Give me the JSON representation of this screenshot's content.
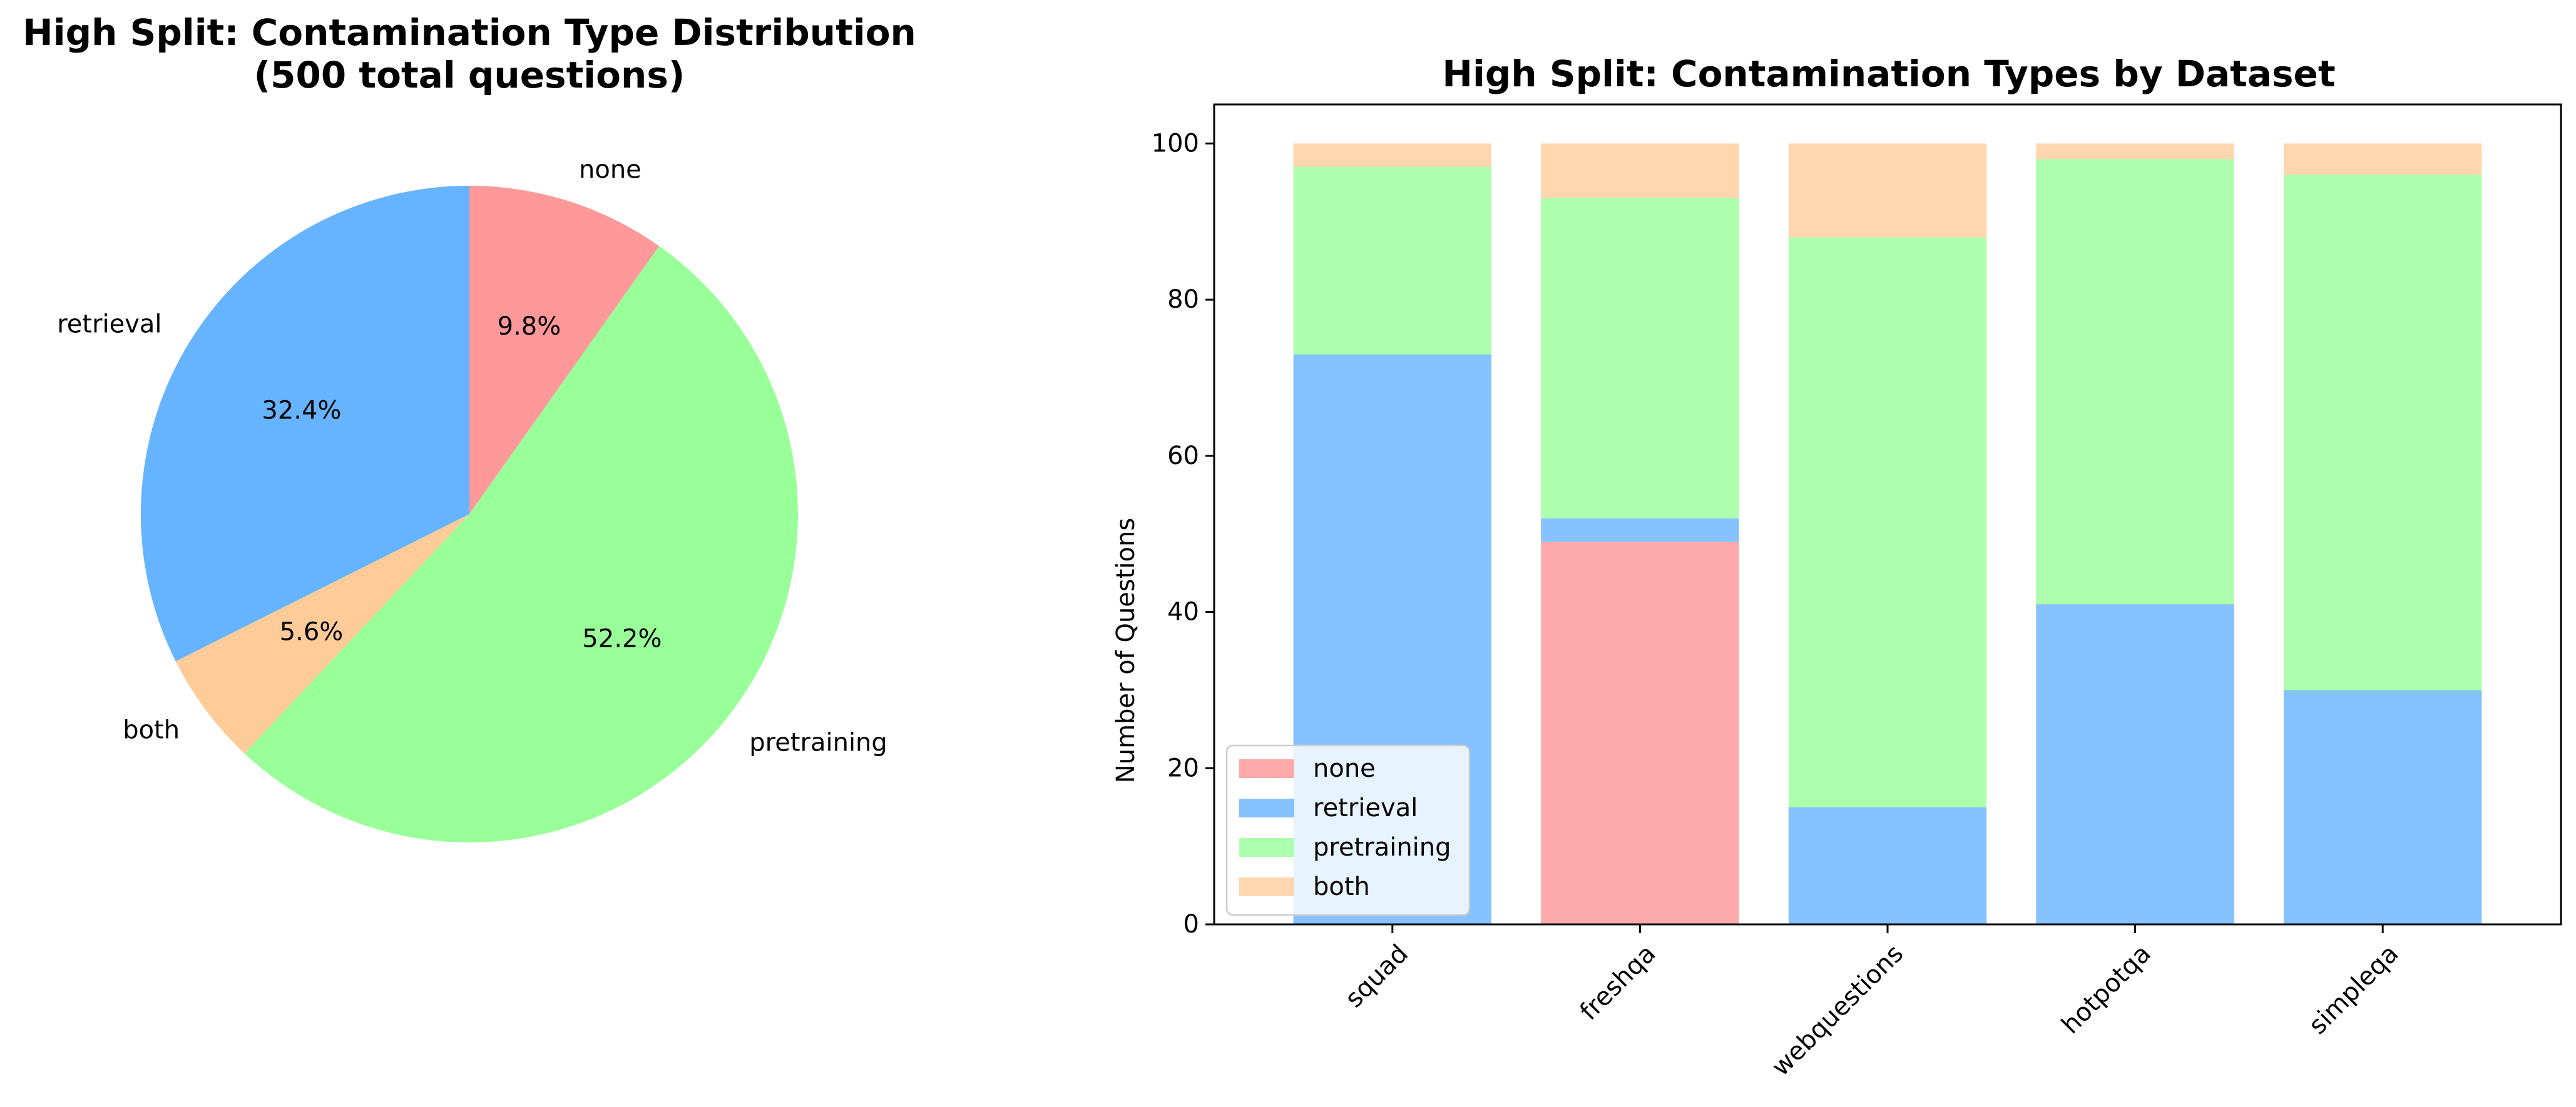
{
  "chart_data": [
    {
      "type": "pie",
      "title": "High Split: Contamination Type Distribution",
      "subtitle": "(500 total questions)",
      "slices": [
        {
          "label": "none",
          "value": 9.8,
          "display": "9.8%",
          "color": "#ff9999"
        },
        {
          "label": "pretraining",
          "value": 52.2,
          "display": "52.2%",
          "color": "#99ff99"
        },
        {
          "label": "both",
          "value": 5.6,
          "display": "5.6%",
          "color": "#ffcc99"
        },
        {
          "label": "retrieval",
          "value": 32.4,
          "display": "32.4%",
          "color": "#66b3ff"
        }
      ],
      "start_angle_deg": 90,
      "direction": "clockwise"
    },
    {
      "type": "bar",
      "stacked": true,
      "title": "High Split: Contamination Types by Dataset",
      "xlabel": "",
      "ylabel": "Number of Questions",
      "ylim": [
        0,
        105
      ],
      "yticks": [
        "0",
        "20",
        "40",
        "60",
        "80",
        "100"
      ],
      "categories": [
        "squad",
        "freshqa",
        "webquestions",
        "hotpotqa",
        "simpleqa"
      ],
      "series": [
        {
          "name": "none",
          "color": "#ffaaaa",
          "values": [
            0,
            49,
            0,
            0,
            0
          ]
        },
        {
          "name": "retrieval",
          "color": "#85c2ff",
          "values": [
            73,
            3,
            15,
            41,
            30
          ]
        },
        {
          "name": "pretraining",
          "color": "#adffad",
          "values": [
            24,
            41,
            73,
            57,
            66
          ]
        },
        {
          "name": "both",
          "color": "#ffd6ad",
          "values": [
            3,
            7,
            12,
            2,
            4
          ]
        }
      ],
      "legend_position": "lower-left"
    }
  ]
}
